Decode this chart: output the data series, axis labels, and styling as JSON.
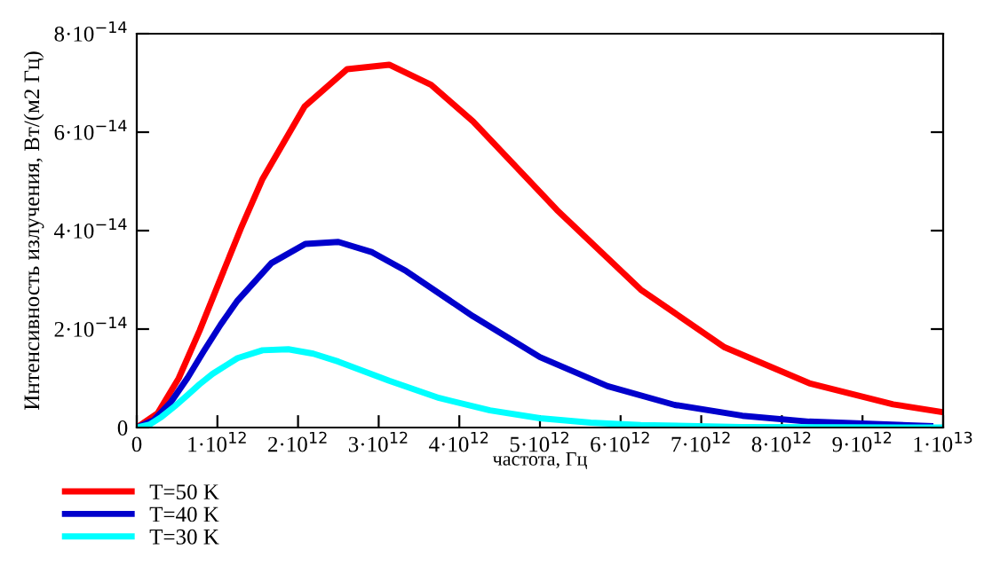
{
  "chart_data": {
    "type": "line",
    "xlabel": "частота, Гц",
    "ylabel": "Интенсивность излучения, Вт/(м2 Гц)",
    "xlim": [
      0,
      10000000000000.0
    ],
    "ylim": [
      0,
      8e-14
    ],
    "xticks": [
      {
        "value": 0,
        "label": "0"
      },
      {
        "value": 1000000000000.0,
        "label": "1·10$^{12}$"
      },
      {
        "value": 2000000000000.0,
        "label": "2·10$^{12}$"
      },
      {
        "value": 3000000000000.0,
        "label": "3·10$^{12}$"
      },
      {
        "value": 4000000000000.0,
        "label": "4·10$^{12}$"
      },
      {
        "value": 5000000000000.0,
        "label": "5·10$^{12}$"
      },
      {
        "value": 6000000000000.0,
        "label": "6·10$^{12}$"
      },
      {
        "value": 7000000000000.0,
        "label": "7·10$^{12}$"
      },
      {
        "value": 8000000000000.0,
        "label": "8·10$^{12}$"
      },
      {
        "value": 9000000000000.0,
        "label": "9·10$^{12}$"
      },
      {
        "value": 10000000000000.0,
        "label": "1·10$^{13}$"
      }
    ],
    "yticks": [
      {
        "value": 0,
        "label": "0"
      },
      {
        "value": 2e-14,
        "label": "2·10$^{−14}$"
      },
      {
        "value": 4e-14,
        "label": "4·10$^{−14}$"
      },
      {
        "value": 6e-14,
        "label": "6·10$^{−14}$"
      },
      {
        "value": 8e-14,
        "label": "8·10$^{−14}$"
      }
    ],
    "grid": false,
    "legend": "bottom left",
    "marker": "none",
    "line_style": "solid",
    "series": [
      {
        "name": "T=50 K",
        "color": "#ff0000",
        "x": [
          0,
          260000000000.0,
          520000000000.0,
          780000000000.0,
          1040000000000.0,
          1300000000000.0,
          1560000000000.0,
          2080000000000.0,
          2610000000000.0,
          3130000000000.0,
          3650000000000.0,
          4170000000000.0,
          5210000000000.0,
          6250000000000.0,
          7290000000000.0,
          8340000000000.0,
          9380000000000.0,
          10000000000000.0
        ],
        "values": [
          0,
          2.9e-15,
          1e-14,
          1.97e-14,
          3.03e-14,
          4.08e-14,
          5.05e-14,
          6.52e-14,
          7.28e-14,
          7.37e-14,
          6.96e-14,
          6.22e-14,
          4.42e-14,
          2.8e-14,
          1.63e-14,
          9e-15,
          4.7e-15,
          3.1e-15
        ]
      },
      {
        "name": "T=40 K",
        "color": "#0000cc",
        "x": [
          0,
          210000000000.0,
          420000000000.0,
          630000000000.0,
          830000000000.0,
          1040000000000.0,
          1250000000000.0,
          1670000000000.0,
          2090000000000.0,
          2500000000000.0,
          2920000000000.0,
          3340000000000.0,
          4170000000000.0,
          5000000000000.0,
          5840000000000.0,
          6670000000000.0,
          7510000000000.0,
          8340000000000.0,
          9840000000000.0
        ],
        "values": [
          0,
          1.5e-15,
          5.1e-15,
          1.01e-14,
          1.55e-14,
          2.09e-14,
          2.58e-14,
          3.34e-14,
          3.73e-14,
          3.77e-14,
          3.56e-14,
          3.18e-14,
          2.26e-14,
          1.43e-14,
          8.4e-15,
          4.6e-15,
          2.4e-15,
          1.2e-15,
          3e-16
        ]
      },
      {
        "name": "T=30 K",
        "color": "#00ffff",
        "x": [
          0,
          160000000000.0,
          310000000000.0,
          470000000000.0,
          630000000000.0,
          780000000000.0,
          940000000000.0,
          1250000000000.0,
          1560000000000.0,
          1880000000000.0,
          2190000000000.0,
          2500000000000.0,
          3130000000000.0,
          3750000000000.0,
          4380000000000.0,
          5000000000000.0,
          5630000000000.0,
          6250000000000.0,
          7500000000000.0,
          8750000000000.0,
          10000000000000.0
        ],
        "values": [
          0,
          6e-16,
          2.2e-15,
          4.3e-15,
          6.6e-15,
          8.8e-15,
          1.09e-14,
          1.41e-14,
          1.57e-14,
          1.59e-14,
          1.5e-14,
          1.34e-14,
          9.5e-15,
          6e-15,
          3.5e-15,
          1.9e-15,
          1e-15,
          5e-16,
          1e-16,
          3e-17,
          0
        ]
      }
    ]
  }
}
